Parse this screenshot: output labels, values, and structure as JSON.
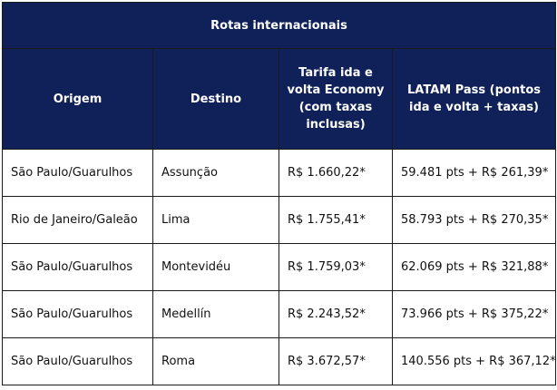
{
  "table": {
    "title": "Rotas internacionais",
    "headers": [
      "Origem",
      "Destino",
      "Tarifa ida e volta Economy (com taxas inclusas)",
      "LATAM Pass (pontos ida e volta + taxas)"
    ],
    "rows": [
      [
        "São Paulo/Guarulhos",
        "Assunção",
        "R$ 1.660,22*",
        "59.481 pts + R$ 261,39*"
      ],
      [
        "Rio de Janeiro/Galeão",
        "Lima",
        "R$ 1.755,41*",
        "58.793 pts + R$ 270,35*"
      ],
      [
        "São Paulo/Guarulhos",
        "Montevidéu",
        "R$ 1.759,03*",
        "62.069 pts + R$ 321,88*"
      ],
      [
        "São Paulo/Guarulhos",
        "Medellín",
        "R$ 2.243,52*",
        "73.966 pts + R$ 375,22*"
      ],
      [
        "São Paulo/Guarulhos",
        "Roma",
        "R$ 3.672,57*",
        "140.556 pts + R$ 367,12*"
      ]
    ]
  },
  "colors": {
    "header_bg": "#0f2158",
    "header_text": "#ffffff",
    "border": "#1a1a1a"
  }
}
